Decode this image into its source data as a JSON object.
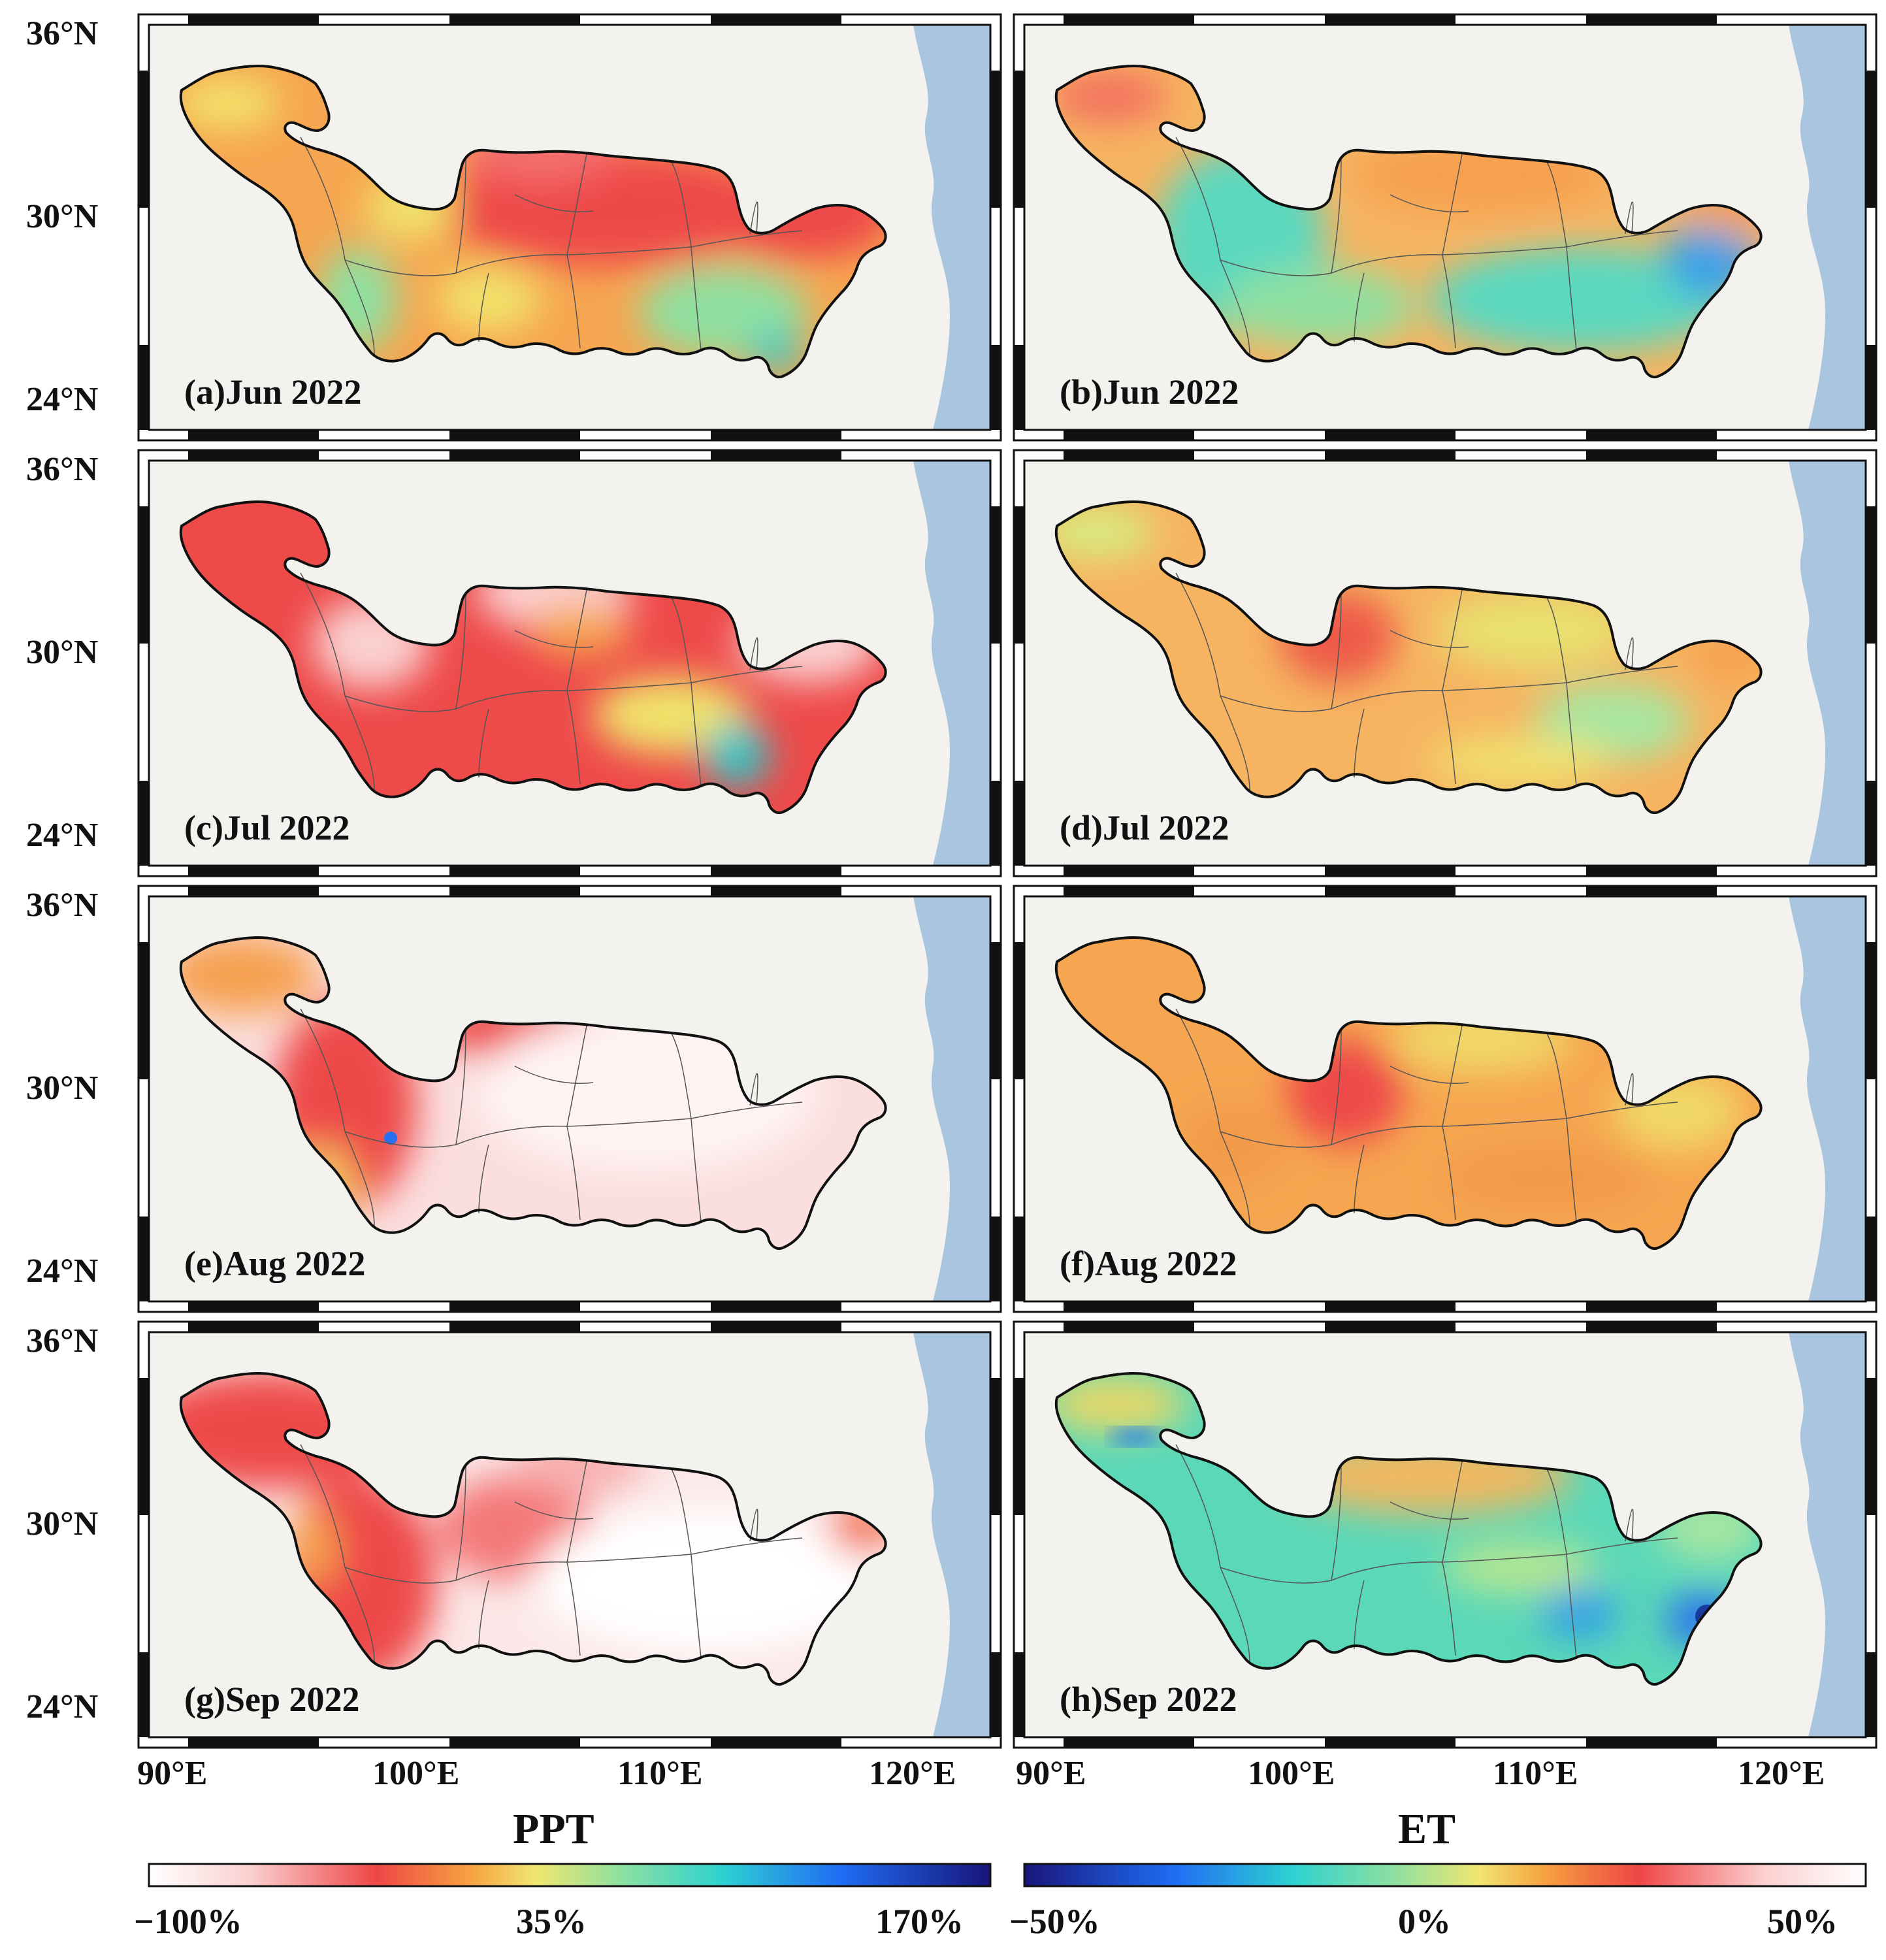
{
  "panels": [
    {
      "label": "(a)Jun 2022",
      "variable": "PPT"
    },
    {
      "label": "(b)Jun 2022",
      "variable": "ET"
    },
    {
      "label": "(c)Jul 2022",
      "variable": "PPT"
    },
    {
      "label": "(d)Jul 2022",
      "variable": "ET"
    },
    {
      "label": "(e)Aug 2022",
      "variable": "PPT"
    },
    {
      "label": "(f)Aug 2022",
      "variable": "ET"
    },
    {
      "label": "(g)Sep 2022",
      "variable": "PPT"
    },
    {
      "label": "(h)Sep 2022",
      "variable": "ET"
    }
  ],
  "lat_labels": [
    "36°N",
    "30°N",
    "24°N"
  ],
  "lon_labels": [
    "90°E",
    "100°E",
    "110°E",
    "120°E"
  ],
  "colorbars": {
    "ppt": {
      "title": "PPT",
      "ticks": [
        "−100%",
        "35%",
        "170%"
      ]
    },
    "et": {
      "title": "ET",
      "ticks": [
        "−50%",
        "0%",
        "50%"
      ]
    }
  },
  "colors": {
    "land": "#f3f2ef",
    "sea": "#a9c5df",
    "outline": "#111111",
    "deep_red": "#ee4a4a",
    "orange": "#f6a14a",
    "yellow": "#f2e66e",
    "green": "#8fe0a0",
    "cyan": "#3ed0c8",
    "blue": "#2a6ff0",
    "pale": "#fde4e4"
  }
}
